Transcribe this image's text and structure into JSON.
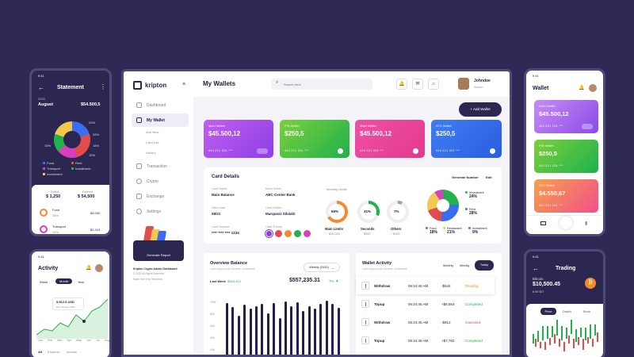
{
  "colors": {
    "bg": "#2f2a55",
    "accent": "#2b2751",
    "green": "#22b14c",
    "red": "#e24c4c",
    "orange": "#f28c28"
  },
  "dashboard": {
    "brand": "kripton",
    "page_title": "My Wallets",
    "search_placeholder": "Search here",
    "user_name": "Johndoe",
    "user_role": "Admin",
    "add_wallet": "+ Add Wallet",
    "nav": [
      {
        "label": "Dashboard",
        "icon": "grid-icon"
      },
      {
        "label": "My Wallet",
        "icon": "wallet-icon"
      },
      {
        "label": "Transaction",
        "icon": "transaction-icon"
      },
      {
        "label": "Crypto",
        "icon": "crypto-icon"
      },
      {
        "label": "Exchange",
        "icon": "exchange-icon"
      },
      {
        "label": "Settings",
        "icon": "gear-icon"
      }
    ],
    "nav_sub": [
      "Add New",
      "Card List",
      "History"
    ],
    "promo_button": "Generate Report",
    "footer_line1": "Kripton Crypto Admin Dashboard",
    "footer_line2": "© 2020 All Rights Reserved",
    "footer_line3": "Made with ♥ by Peterdraw",
    "cards": [
      {
        "label": "Main Wallet",
        "amount": "$45.500,12",
        "number": "444 221 224 ***"
      },
      {
        "label": "PIN Wallet",
        "amount": "$250,5",
        "number": "444 221 224 ***"
      },
      {
        "label": "Main Wallet",
        "amount": "$45.500,12",
        "number": "444 221 224 ***"
      },
      {
        "label": "ATC Wallet",
        "amount": "$250,5",
        "number": "444 221 224 ***"
      }
    ],
    "card_details": {
      "title": "Card Details",
      "generate": "Generate Number",
      "edit": "Edit",
      "fields": [
        {
          "label": "Card Name",
          "value": "Main Balance"
        },
        {
          "label": "Bank Name",
          "value": "ABC Center Bank"
        },
        {
          "label": "Valid Date",
          "value": "08/21"
        },
        {
          "label": "Card Holder",
          "value": "Marquezz Silalahi"
        },
        {
          "label": "Card Number",
          "value": "**** **** **** 1234"
        },
        {
          "label": "Card Theme",
          "value": ""
        }
      ],
      "monthly_limits": "Monthly Limits",
      "limits": [
        {
          "pct": "66%",
          "name": "Main Limits",
          "value": "$10,000",
          "fill": 0.66,
          "color": "#f28c28"
        },
        {
          "pct": "31%",
          "name": "Seconds",
          "value": "$500",
          "fill": 0.31,
          "color": "#22b14c"
        },
        {
          "pct": "7%",
          "name": "Others",
          "value": "$100",
          "fill": 0.07,
          "color": "#9aa0b5"
        }
      ],
      "pie_legend": [
        {
          "name": "Investment",
          "pct": "24%",
          "color": "#22b14c"
        },
        {
          "name": "Rent",
          "pct": "28%",
          "color": "#3a6ef0"
        },
        {
          "name": "Food",
          "pct": "18%",
          "color": "#e24c4c"
        },
        {
          "name": "Restaurant",
          "pct": "21%",
          "color": "#f2c94c"
        },
        {
          "name": "Investment",
          "pct": "9%",
          "color": "#d63fbf"
        }
      ],
      "theme_colors": [
        "#8a3ee8",
        "#e24c4c",
        "#f28c28",
        "#22b14c",
        "#d63fbf"
      ]
    },
    "overview": {
      "title": "Overview Balance",
      "subtitle": "Lorem ipsum dolor sit amet, consectetur",
      "dropdown": "Weekly (2020)",
      "last_week_label": "Last Week",
      "last_week_value": "$563,443",
      "balance": "$557,235.31",
      "change": "7%",
      "yticks": [
        "100k",
        "80k",
        "60k",
        "40k",
        "20k"
      ],
      "bars": [
        0.95,
        0.88,
        0.74,
        0.92,
        0.85,
        0.9,
        0.93,
        0.77,
        0.95,
        0.7,
        0.98,
        0.89,
        0.96,
        0.81,
        0.9,
        0.86,
        0.93,
        0.99,
        0.93,
        0.87
      ]
    },
    "wallet_activity": {
      "title": "Wallet Activity",
      "subtitle": "Lorem ipsum dolor sit amet, consectetur",
      "tabs": [
        "Monthly",
        "Weekly",
        "Today"
      ],
      "rows": [
        {
          "type": "Withdraw",
          "time": "06:24:45 AM",
          "amount": "-$542",
          "status": "Pending",
          "color": "#f28c28"
        },
        {
          "type": "Topup",
          "time": "06:24:45 AM",
          "amount": "+$5,553",
          "status": "Completed",
          "color": "#22b14c"
        },
        {
          "type": "Withdraw",
          "time": "06:24:45 AM",
          "amount": "-$912",
          "status": "Canceled",
          "color": "#e24c4c"
        },
        {
          "type": "Topup",
          "time": "06:24:45 AM",
          "amount": "+$7,762",
          "status": "Completed",
          "color": "#22b14c"
        }
      ]
    }
  },
  "statement": {
    "time": "9:41",
    "title": "Statement",
    "year": "2020",
    "month": "August",
    "total": "$54.500,5",
    "donut_labels": [
      "20%",
      "26%",
      "18%",
      "10%",
      "10%"
    ],
    "legend": [
      {
        "name": "Food",
        "color": "#3a6ef0"
      },
      {
        "name": "Rent",
        "color": "#e24c4c"
      },
      {
        "name": "Transport",
        "color": "#d63fbf"
      },
      {
        "name": "Installment",
        "color": "#22b14c"
      },
      {
        "name": "Investment",
        "color": "#f2c94c"
      }
    ],
    "spent_label": "Spent",
    "spent": "$ 1,250",
    "earned_label": "Earned",
    "earned": "$ 54,500",
    "items": [
      {
        "name": "Food",
        "pct": "26%",
        "amount": "$4,000"
      },
      {
        "name": "Transport",
        "pct": "10%",
        "amount": "$2,415"
      }
    ]
  },
  "activity": {
    "time": "9:41",
    "title": "Activity",
    "tabs": [
      "Week",
      "Month",
      "Year"
    ],
    "tooltip": "5,512.5 USD",
    "tooltip_sub": "2nd January 2021",
    "months": [
      "Jan",
      "Feb",
      "Mar",
      "Apr",
      "May",
      "Jun",
      "Jul",
      "Aug"
    ],
    "bottom_tabs": [
      "All",
      "Expense",
      "Income"
    ]
  },
  "wallet_phone": {
    "time": "9:41",
    "title": "Wallet",
    "cards": [
      {
        "label": "Main Wallet",
        "amount": "$45.500,12",
        "number": "444 221 224 ***"
      },
      {
        "label": "PIN Wallet",
        "amount": "$250,5",
        "number": "444 221 224 ***"
      },
      {
        "label": "ATC Wallet",
        "amount": "$4.550,67",
        "number": "444 221 224 ***"
      }
    ]
  },
  "trading": {
    "time": "9:41",
    "title": "Trading",
    "coin": "Bitcoin",
    "price": "$10,500.45",
    "change": "6.95 BIT",
    "tabs": [
      "Price",
      "Depth",
      "Book"
    ]
  }
}
